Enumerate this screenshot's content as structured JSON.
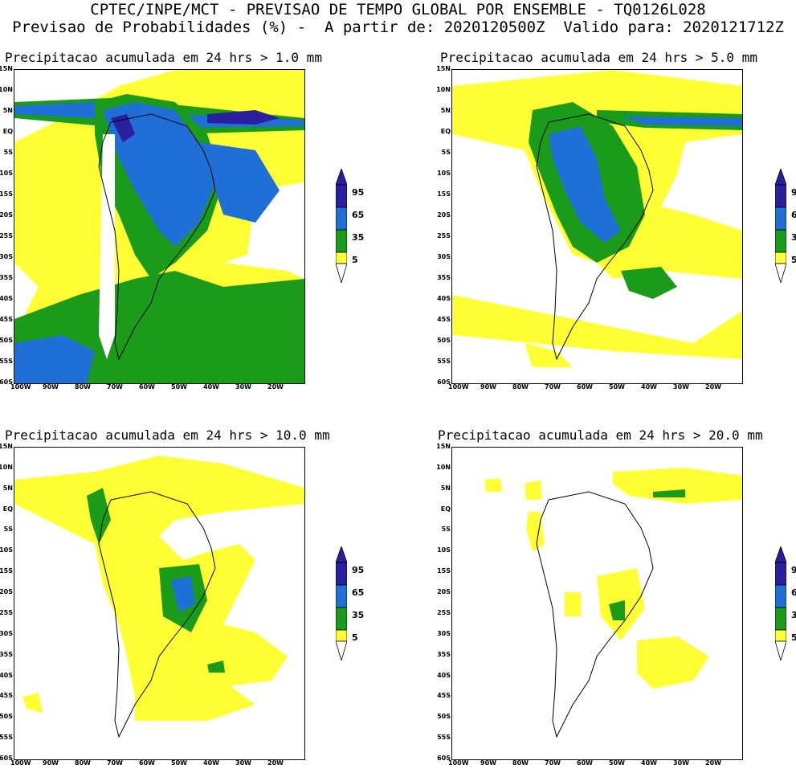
{
  "header": {
    "line1": "CPTEC/INPE/MCT - PREVISAO DE TEMPO GLOBAL POR ENSEMBLE - TQ0126L028",
    "line2": "Previsao de Probabilidades (%) -  A partir de: 2020120500Z  Valido para: 2020121712Z"
  },
  "panels": [
    {
      "title": "Precipitacao acumulada em 24 hrs > 1.0 mm"
    },
    {
      "title": "Precipitacao acumulada em 24 hrs > 5.0 mm"
    },
    {
      "title": "Precipitacao acumulada em 24 hrs > 10.0 mm"
    },
    {
      "title": "Precipitacao acumulada em 24 hrs > 20.0 mm"
    }
  ],
  "lat_labels": [
    "15N",
    "10N",
    "5N",
    "EQ",
    "5S",
    "10S",
    "15S",
    "20S",
    "25S",
    "30S",
    "35S",
    "40S",
    "45S",
    "50S",
    "55S",
    "60S"
  ],
  "lon_labels": [
    "100W",
    "90W",
    "80W",
    "70W",
    "60W",
    "50W",
    "40W",
    "30W",
    "20W"
  ],
  "legend": {
    "levels": [
      "95",
      "65",
      "35",
      "5"
    ],
    "colors": {
      "level_95": "#2a1f9e",
      "level_65": "#1f6fd6",
      "level_35": "#1a9b1a",
      "level_5": "#ffff33"
    }
  }
}
